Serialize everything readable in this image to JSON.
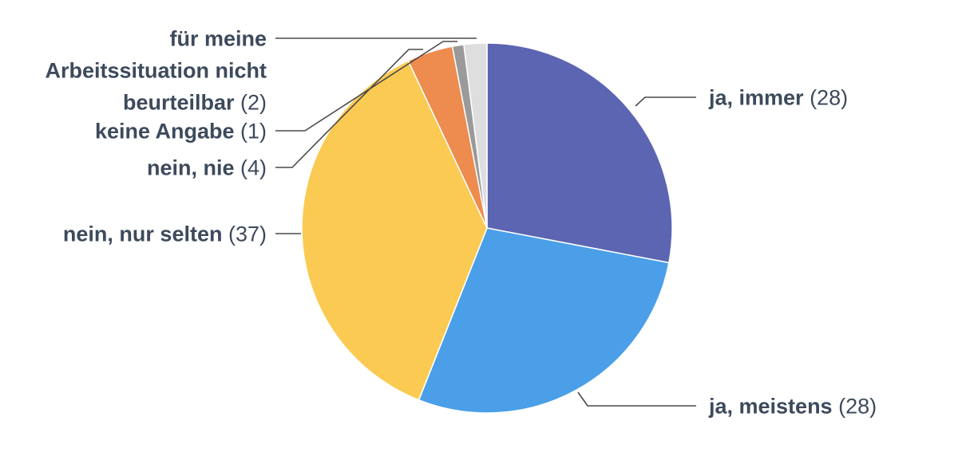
{
  "chart_data": {
    "type": "pie",
    "title": "",
    "slices": [
      {
        "label": "ja, immer",
        "value": 28,
        "color": "#5b65b2"
      },
      {
        "label": "ja, meistens",
        "value": 28,
        "color": "#4a9fe8"
      },
      {
        "label": "nein, nur selten",
        "value": 37,
        "color": "#fbca52"
      },
      {
        "label": "nein, nie",
        "value": 4,
        "color": "#ee8b4e"
      },
      {
        "label": "keine Angabe",
        "value": 1,
        "color": "#9a9a9a"
      },
      {
        "label": "für meine Arbeitssituation nicht beurteilbar",
        "value": 2,
        "color": "#dedede"
      }
    ],
    "label_lines": [
      [
        "ja, immer"
      ],
      [
        "ja, meistens"
      ],
      [
        "nein, nur selten"
      ],
      [
        "nein, nie"
      ],
      [
        "keine Angabe"
      ],
      [
        "für meine",
        "Arbeitssituation nicht",
        "beurteilbar"
      ]
    ],
    "counts_text": [
      "(28)",
      "(28)",
      "(37)",
      "(4)",
      "(1)",
      "(2)"
    ],
    "label_color": "#3d4a5c",
    "leader_color": "#4a4a4a"
  }
}
